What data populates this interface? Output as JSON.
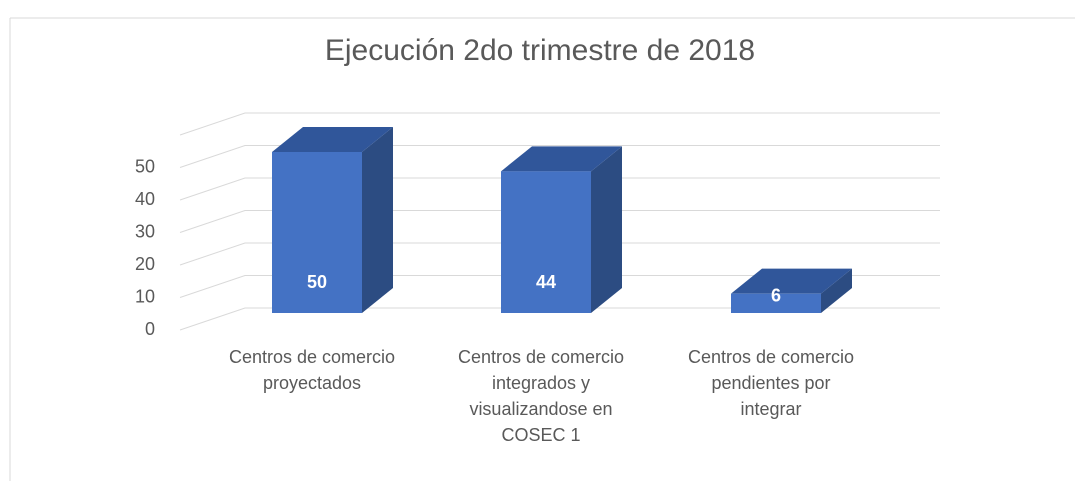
{
  "chart_data": {
    "type": "bar3d",
    "title": "Ejecución 2do trimestre de 2018",
    "categories": [
      [
        "Centros de comercio",
        "proyectados"
      ],
      [
        "Centros de comercio",
        "integrados y",
        "visualizandose en",
        "COSEC 1"
      ],
      [
        "Centros de comercio",
        "pendientes por",
        "integrar"
      ]
    ],
    "values": [
      50,
      44,
      6
    ],
    "color": "#4472c4",
    "ylim": [
      0,
      60
    ],
    "yticks": [
      0,
      10,
      20,
      30,
      40,
      50
    ],
    "grid": true
  }
}
